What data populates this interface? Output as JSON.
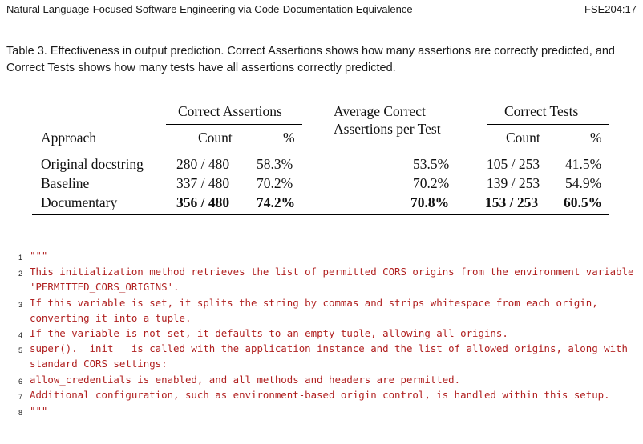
{
  "header": {
    "title": "Natural Language-Focused Software Engineering via Code-Documentation Equivalence",
    "page_ref": "FSE204:17"
  },
  "caption": "Table 3.  Effectiveness in output prediction. Correct Assertions shows how many assertions are correctly predicted, and Correct Tests shows how many tests have all assertions correctly predicted.",
  "table": {
    "group_headers": {
      "correct_assertions": "Correct Assertions",
      "average_line1": "Average Correct",
      "average_line2": "Assertions per Test",
      "correct_tests": "Correct Tests"
    },
    "columns": {
      "approach": "Approach",
      "count_a": "Count",
      "pct_a": "%",
      "count_t": "Count",
      "pct_t": "%"
    },
    "rows": [
      {
        "approach": "Original docstring",
        "count_a": "280 / 480",
        "pct_a": "58.3%",
        "avg": "53.5%",
        "count_t": "105 / 253",
        "pct_t": "41.5%"
      },
      {
        "approach": "Baseline",
        "count_a": "337 / 480",
        "pct_a": "70.2%",
        "avg": "70.2%",
        "count_t": "139 / 253",
        "pct_t": "54.9%"
      },
      {
        "approach": "Documentary",
        "count_a": "356 / 480",
        "pct_a": "74.2%",
        "avg": "70.8%",
        "count_t": "153 / 253",
        "pct_t": "60.5%"
      }
    ]
  },
  "code": [
    {
      "num": "1",
      "text": "\"\"\""
    },
    {
      "num": "2",
      "text": "This initialization method retrieves the list of permitted CORS origins from the environment variable 'PERMITTED_CORS_ORIGINS'."
    },
    {
      "num": "3",
      "text": "If this variable is set, it splits the string by commas and strips whitespace from each origin, converting it into a tuple."
    },
    {
      "num": "4",
      "text": "If the variable is not set, it defaults to an empty tuple, allowing all origins."
    },
    {
      "num": "5",
      "text": "super().__init__ is called with the application instance and the list of allowed origins, along with standard CORS settings:"
    },
    {
      "num": "6",
      "text": "allow_credentials is enabled, and all methods and headers are permitted."
    },
    {
      "num": "7",
      "text": "Additional configuration, such as environment-based origin control, is handled within this setup."
    },
    {
      "num": "8",
      "text": "\"\"\""
    }
  ]
}
